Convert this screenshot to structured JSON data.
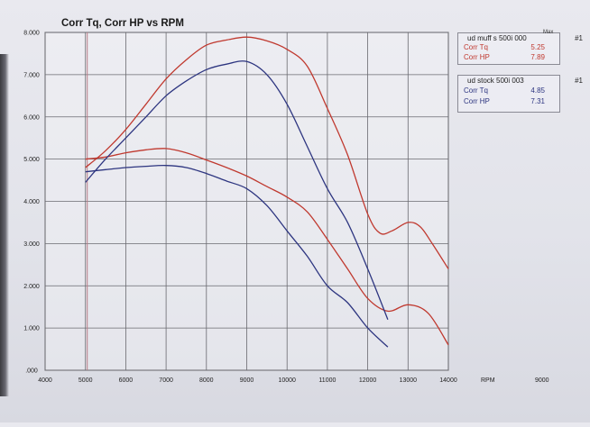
{
  "chart_data": {
    "type": "line",
    "title": "Corr Tq, Corr HP vs RPM",
    "xlabel": "RPM",
    "ylabel": "",
    "xlim": [
      4000,
      14000
    ],
    "ylim": [
      0,
      8
    ],
    "x_ticks": [
      "4000",
      "5000",
      "6000",
      "7000",
      "8000",
      "9000",
      "10000",
      "11000",
      "12000",
      "13000",
      "14000"
    ],
    "y_ticks": [
      ".000",
      "1.000",
      "2.000",
      "3.000",
      "4.000",
      "5.000",
      "6.000",
      "7.000",
      "8.000"
    ],
    "extra_label": "9000",
    "grid": true,
    "legend_placement": "top-right",
    "legends": [
      {
        "title": "ud muff s 500i 000",
        "index": "#1",
        "max_label": "Max",
        "color": "#c0392f",
        "rows": [
          {
            "label": "Corr Tq",
            "value": "5.25"
          },
          {
            "label": "Corr HP",
            "value": "7.89"
          }
        ]
      },
      {
        "title": "ud stock 500i 003",
        "index": "#1",
        "max_label": "",
        "color": "#2d3580",
        "rows": [
          {
            "label": "Corr Tq",
            "value": "4.85"
          },
          {
            "label": "Corr HP",
            "value": "7.31"
          }
        ]
      }
    ],
    "series": [
      {
        "run": "ud muff s 500i 000",
        "measure": "Corr HP",
        "color": "#c0392f",
        "points": [
          [
            5000,
            4.8
          ],
          [
            5500,
            5.2
          ],
          [
            6000,
            5.7
          ],
          [
            6500,
            6.3
          ],
          [
            7000,
            6.9
          ],
          [
            7500,
            7.35
          ],
          [
            8000,
            7.7
          ],
          [
            8500,
            7.82
          ],
          [
            9000,
            7.89
          ],
          [
            9500,
            7.8
          ],
          [
            10000,
            7.6
          ],
          [
            10500,
            7.2
          ],
          [
            11000,
            6.2
          ],
          [
            11500,
            5.1
          ],
          [
            12000,
            3.7
          ],
          [
            12300,
            3.25
          ],
          [
            12600,
            3.3
          ],
          [
            13000,
            3.5
          ],
          [
            13300,
            3.4
          ],
          [
            13600,
            3.0
          ],
          [
            14000,
            2.4
          ]
        ]
      },
      {
        "run": "ud muff s 500i 000",
        "measure": "Corr Tq",
        "color": "#c0392f",
        "points": [
          [
            5000,
            5.0
          ],
          [
            5500,
            5.05
          ],
          [
            6000,
            5.15
          ],
          [
            6500,
            5.22
          ],
          [
            7000,
            5.25
          ],
          [
            7500,
            5.15
          ],
          [
            8000,
            4.98
          ],
          [
            8500,
            4.8
          ],
          [
            9000,
            4.6
          ],
          [
            9500,
            4.35
          ],
          [
            10000,
            4.1
          ],
          [
            10500,
            3.75
          ],
          [
            11000,
            3.1
          ],
          [
            11500,
            2.4
          ],
          [
            12000,
            1.7
          ],
          [
            12500,
            1.4
          ],
          [
            13000,
            1.55
          ],
          [
            13500,
            1.35
          ],
          [
            14000,
            0.6
          ]
        ]
      },
      {
        "run": "ud stock 500i 003",
        "measure": "Corr HP",
        "color": "#2d3580",
        "points": [
          [
            5000,
            4.45
          ],
          [
            5500,
            5.0
          ],
          [
            6000,
            5.5
          ],
          [
            6500,
            6.0
          ],
          [
            7000,
            6.5
          ],
          [
            7500,
            6.85
          ],
          [
            8000,
            7.12
          ],
          [
            8500,
            7.25
          ],
          [
            9000,
            7.31
          ],
          [
            9500,
            7.0
          ],
          [
            10000,
            6.3
          ],
          [
            10500,
            5.3
          ],
          [
            11000,
            4.3
          ],
          [
            11500,
            3.5
          ],
          [
            12000,
            2.4
          ],
          [
            12500,
            1.2
          ]
        ]
      },
      {
        "run": "ud stock 500i 003",
        "measure": "Corr Tq",
        "color": "#2d3580",
        "points": [
          [
            5000,
            4.7
          ],
          [
            5500,
            4.75
          ],
          [
            6000,
            4.8
          ],
          [
            6500,
            4.83
          ],
          [
            7000,
            4.85
          ],
          [
            7500,
            4.8
          ],
          [
            8000,
            4.66
          ],
          [
            8500,
            4.48
          ],
          [
            9000,
            4.3
          ],
          [
            9500,
            3.9
          ],
          [
            10000,
            3.3
          ],
          [
            10500,
            2.7
          ],
          [
            11000,
            2.0
          ],
          [
            11500,
            1.6
          ],
          [
            12000,
            1.0
          ],
          [
            12500,
            0.55
          ]
        ]
      }
    ]
  }
}
